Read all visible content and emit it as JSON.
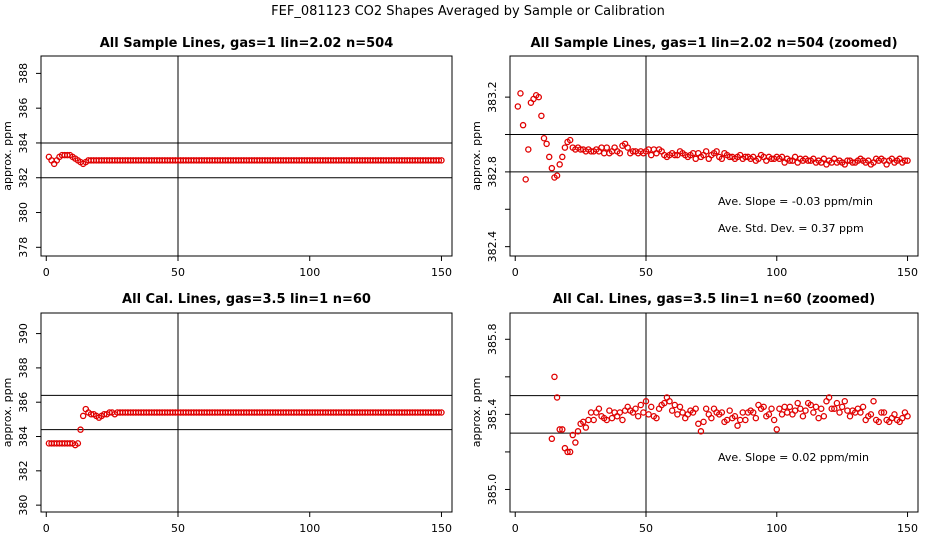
{
  "figure_title": "FEF_081123  CO2 Shapes Averaged by Sample or Calibration",
  "colors": {
    "points": "#e00000",
    "lines": "#000000"
  },
  "chart_data": [
    {
      "type": "scatter",
      "title": "All Sample Lines, gas=1 lin=2.02 n=504",
      "ylabel": "approx. ppm",
      "xlim": [
        -2,
        154
      ],
      "ylim": [
        377.5,
        389.0
      ],
      "xticks": [
        0,
        50,
        100,
        150
      ],
      "yticks": [
        378,
        380,
        382,
        384,
        386,
        388
      ],
      "vline": 50,
      "hlines": [
        382.0,
        384.0
      ],
      "annotations": [],
      "series": [
        {
          "x_start": 1,
          "x_step": 1,
          "values": [
            383.2,
            383.0,
            382.8,
            383.0,
            383.2,
            383.3,
            383.3,
            383.3,
            383.3,
            383.2,
            383.1,
            383.0,
            382.9,
            382.8,
            382.9,
            383.0,
            383.0,
            383.0,
            383.0,
            383.0,
            383.0,
            383.0,
            383.0,
            383.0,
            383.0,
            383.0,
            383.0,
            383.0,
            383.0,
            383.0,
            383.0,
            383.0,
            383.0,
            383.0,
            383.0,
            383.0,
            383.0,
            383.0,
            383.0,
            383.0,
            383.0,
            383.0,
            383.0,
            383.0,
            383.0,
            383.0,
            383.0,
            383.0,
            383.0,
            383.0,
            383.0,
            383.0,
            383.0,
            383.0,
            383.0,
            383.0,
            383.0,
            383.0,
            383.0,
            383.0,
            383.0,
            383.0,
            383.0,
            383.0,
            383.0,
            383.0,
            383.0,
            383.0,
            383.0,
            383.0,
            383.0,
            383.0,
            383.0,
            383.0,
            383.0,
            383.0,
            383.0,
            383.0,
            383.0,
            383.0,
            383.0,
            383.0,
            383.0,
            383.0,
            383.0,
            383.0,
            383.0,
            383.0,
            383.0,
            383.0,
            383.0,
            383.0,
            383.0,
            383.0,
            383.0,
            383.0,
            383.0,
            383.0,
            383.0,
            383.0,
            383.0,
            383.0,
            383.0,
            383.0,
            383.0,
            383.0,
            383.0,
            383.0,
            383.0,
            383.0,
            383.0,
            383.0,
            383.0,
            383.0,
            383.0,
            383.0,
            383.0,
            383.0,
            383.0,
            383.0,
            383.0,
            383.0,
            383.0,
            383.0,
            383.0,
            383.0,
            383.0,
            383.0,
            383.0,
            383.0,
            383.0,
            383.0,
            383.0,
            383.0,
            383.0,
            383.0,
            383.0,
            383.0,
            383.0,
            383.0,
            383.0,
            383.0,
            383.0,
            383.0,
            383.0,
            383.0,
            383.0,
            383.0,
            383.0,
            383.0
          ]
        }
      ]
    },
    {
      "type": "scatter",
      "title": "All Sample Lines, gas=1 lin=2.02 n=504 (zoomed)",
      "ylabel": "approx. ppm",
      "xlim": [
        -2,
        154
      ],
      "ylim": [
        382.35,
        383.42
      ],
      "xticks": [
        0,
        50,
        100,
        150
      ],
      "yticks": [
        382.4,
        382.6,
        382.8,
        383.0,
        383.2
      ],
      "yticklabels": [
        "382.4",
        "",
        "382.8",
        "",
        "383.2"
      ],
      "vline": 50,
      "hlines": [
        382.8,
        383.0
      ],
      "annotations": [
        "Ave. Slope =  -0.03  ppm/min",
        "Ave. Std. Dev. =  0.37  ppm"
      ],
      "series": [
        {
          "x_start": 1,
          "x_step": 1,
          "values": [
            383.15,
            383.22,
            383.05,
            382.76,
            382.92,
            383.17,
            383.19,
            383.21,
            383.2,
            383.1,
            382.98,
            382.95,
            382.88,
            382.82,
            382.77,
            382.78,
            382.84,
            382.88,
            382.93,
            382.96,
            382.97,
            382.93,
            382.92,
            382.93,
            382.92,
            382.92,
            382.91,
            382.92,
            382.91,
            382.91,
            382.92,
            382.91,
            382.93,
            382.9,
            382.93,
            382.9,
            382.91,
            382.93,
            382.91,
            382.9,
            382.94,
            382.95,
            382.93,
            382.9,
            382.91,
            382.91,
            382.9,
            382.91,
            382.9,
            382.91,
            382.92,
            382.89,
            382.92,
            382.9,
            382.92,
            382.91,
            382.89,
            382.88,
            382.89,
            382.9,
            382.89,
            382.89,
            382.91,
            382.9,
            382.89,
            382.88,
            382.89,
            382.9,
            382.87,
            382.9,
            382.88,
            382.89,
            382.91,
            382.87,
            382.89,
            382.9,
            382.91,
            382.88,
            382.87,
            382.9,
            382.89,
            382.88,
            382.88,
            382.87,
            382.88,
            382.89,
            382.87,
            382.88,
            382.88,
            382.87,
            382.88,
            382.86,
            382.87,
            382.89,
            382.88,
            382.86,
            382.88,
            382.87,
            382.87,
            382.88,
            382.87,
            382.88,
            382.85,
            382.87,
            382.86,
            382.86,
            382.88,
            382.85,
            382.87,
            382.86,
            382.87,
            382.86,
            382.86,
            382.87,
            382.85,
            382.86,
            382.85,
            382.87,
            382.84,
            382.86,
            382.85,
            382.87,
            382.85,
            382.86,
            382.85,
            382.84,
            382.86,
            382.86,
            382.85,
            382.85,
            382.86,
            382.87,
            382.86,
            382.85,
            382.86,
            382.84,
            382.85,
            382.87,
            382.86,
            382.87,
            382.86,
            382.84,
            382.86,
            382.87,
            382.85,
            382.86,
            382.87,
            382.85,
            382.86,
            382.86
          ]
        }
      ]
    },
    {
      "type": "scatter",
      "title": "All Cal. Lines, gas=3.5 lin=1 n=60",
      "ylabel": "approx. ppm",
      "xlim": [
        -2,
        154
      ],
      "ylim": [
        379.6,
        391.2
      ],
      "xticks": [
        0,
        50,
        100,
        150
      ],
      "yticks": [
        380,
        382,
        384,
        386,
        388,
        390
      ],
      "vline": 50,
      "hlines": [
        384.4,
        386.4
      ],
      "annotations": [],
      "series": [
        {
          "x_start": 1,
          "x_step": 1,
          "values": [
            383.6,
            383.6,
            383.6,
            383.6,
            383.6,
            383.6,
            383.6,
            383.6,
            383.6,
            383.6,
            383.5,
            383.6,
            384.4,
            385.2,
            385.6,
            385.4,
            385.3,
            385.3,
            385.2,
            385.1,
            385.2,
            385.3,
            385.3,
            385.4,
            385.4,
            385.3,
            385.4,
            385.4,
            385.4,
            385.4,
            385.4,
            385.4,
            385.4,
            385.4,
            385.4,
            385.4,
            385.4,
            385.4,
            385.4,
            385.4,
            385.4,
            385.4,
            385.4,
            385.4,
            385.4,
            385.4,
            385.4,
            385.4,
            385.4,
            385.4,
            385.4,
            385.4,
            385.4,
            385.4,
            385.4,
            385.4,
            385.4,
            385.4,
            385.4,
            385.4,
            385.4,
            385.4,
            385.4,
            385.4,
            385.4,
            385.4,
            385.4,
            385.4,
            385.4,
            385.4,
            385.4,
            385.4,
            385.4,
            385.4,
            385.4,
            385.4,
            385.4,
            385.4,
            385.4,
            385.4,
            385.4,
            385.4,
            385.4,
            385.4,
            385.4,
            385.4,
            385.4,
            385.4,
            385.4,
            385.4,
            385.4,
            385.4,
            385.4,
            385.4,
            385.4,
            385.4,
            385.4,
            385.4,
            385.4,
            385.4,
            385.4,
            385.4,
            385.4,
            385.4,
            385.4,
            385.4,
            385.4,
            385.4,
            385.4,
            385.4,
            385.4,
            385.4,
            385.4,
            385.4,
            385.4,
            385.4,
            385.4,
            385.4,
            385.4,
            385.4,
            385.4,
            385.4,
            385.4,
            385.4,
            385.4,
            385.4,
            385.4,
            385.4,
            385.4,
            385.4,
            385.4,
            385.4,
            385.4,
            385.4,
            385.4,
            385.4,
            385.4,
            385.4,
            385.4,
            385.4,
            385.4,
            385.4,
            385.4,
            385.4,
            385.4,
            385.4,
            385.4,
            385.4,
            385.4,
            385.4
          ]
        }
      ]
    },
    {
      "type": "scatter",
      "title": "All Cal. Lines, gas=3.5 lin=1 n=60 (zoomed)",
      "ylabel": "approx. ppm",
      "xlim": [
        -2,
        154
      ],
      "ylim": [
        384.88,
        385.94
      ],
      "xticks": [
        0,
        50,
        100,
        150
      ],
      "yticks": [
        385.0,
        385.2,
        385.4,
        385.6,
        385.8
      ],
      "yticklabels": [
        "385.0",
        "",
        "385.4",
        "",
        "385.8"
      ],
      "vline": 50,
      "hlines": [
        385.3,
        385.5
      ],
      "annotations": [
        "Ave. Slope =  0.02  ppm/min"
      ],
      "series": [
        {
          "x_start": 14,
          "x_step": 1,
          "values": [
            385.27,
            385.6,
            385.49,
            385.32,
            385.32,
            385.22,
            385.2,
            385.2,
            385.29,
            385.25,
            385.31,
            385.35,
            385.36,
            385.33,
            385.37,
            385.41,
            385.37,
            385.41,
            385.43,
            385.39,
            385.38,
            385.37,
            385.42,
            385.38,
            385.41,
            385.39,
            385.41,
            385.37,
            385.42,
            385.44,
            385.42,
            385.41,
            385.43,
            385.39,
            385.45,
            385.41,
            385.47,
            385.4,
            385.44,
            385.39,
            385.38,
            385.43,
            385.45,
            385.46,
            385.49,
            385.47,
            385.42,
            385.45,
            385.4,
            385.44,
            385.41,
            385.38,
            385.4,
            385.42,
            385.41,
            385.43,
            385.35,
            385.31,
            385.36,
            385.43,
            385.4,
            385.38,
            385.43,
            385.41,
            385.4,
            385.41,
            385.36,
            385.37,
            385.42,
            385.38,
            385.39,
            385.34,
            385.37,
            385.41,
            385.37,
            385.41,
            385.42,
            385.41,
            385.38,
            385.45,
            385.43,
            385.44,
            385.39,
            385.4,
            385.43,
            385.37,
            385.32,
            385.43,
            385.4,
            385.44,
            385.41,
            385.44,
            385.4,
            385.42,
            385.46,
            385.43,
            385.39,
            385.42,
            385.46,
            385.45,
            385.41,
            385.44,
            385.38,
            385.43,
            385.39,
            385.47,
            385.49,
            385.43,
            385.43,
            385.46,
            385.41,
            385.44,
            385.47,
            385.42,
            385.39,
            385.42,
            385.41,
            385.43,
            385.41,
            385.44,
            385.37,
            385.39,
            385.4,
            385.47,
            385.37,
            385.36,
            385.41,
            385.41,
            385.37,
            385.36,
            385.38,
            385.4,
            385.37,
            385.36,
            385.38,
            385.41,
            385.39
          ]
        }
      ]
    }
  ]
}
